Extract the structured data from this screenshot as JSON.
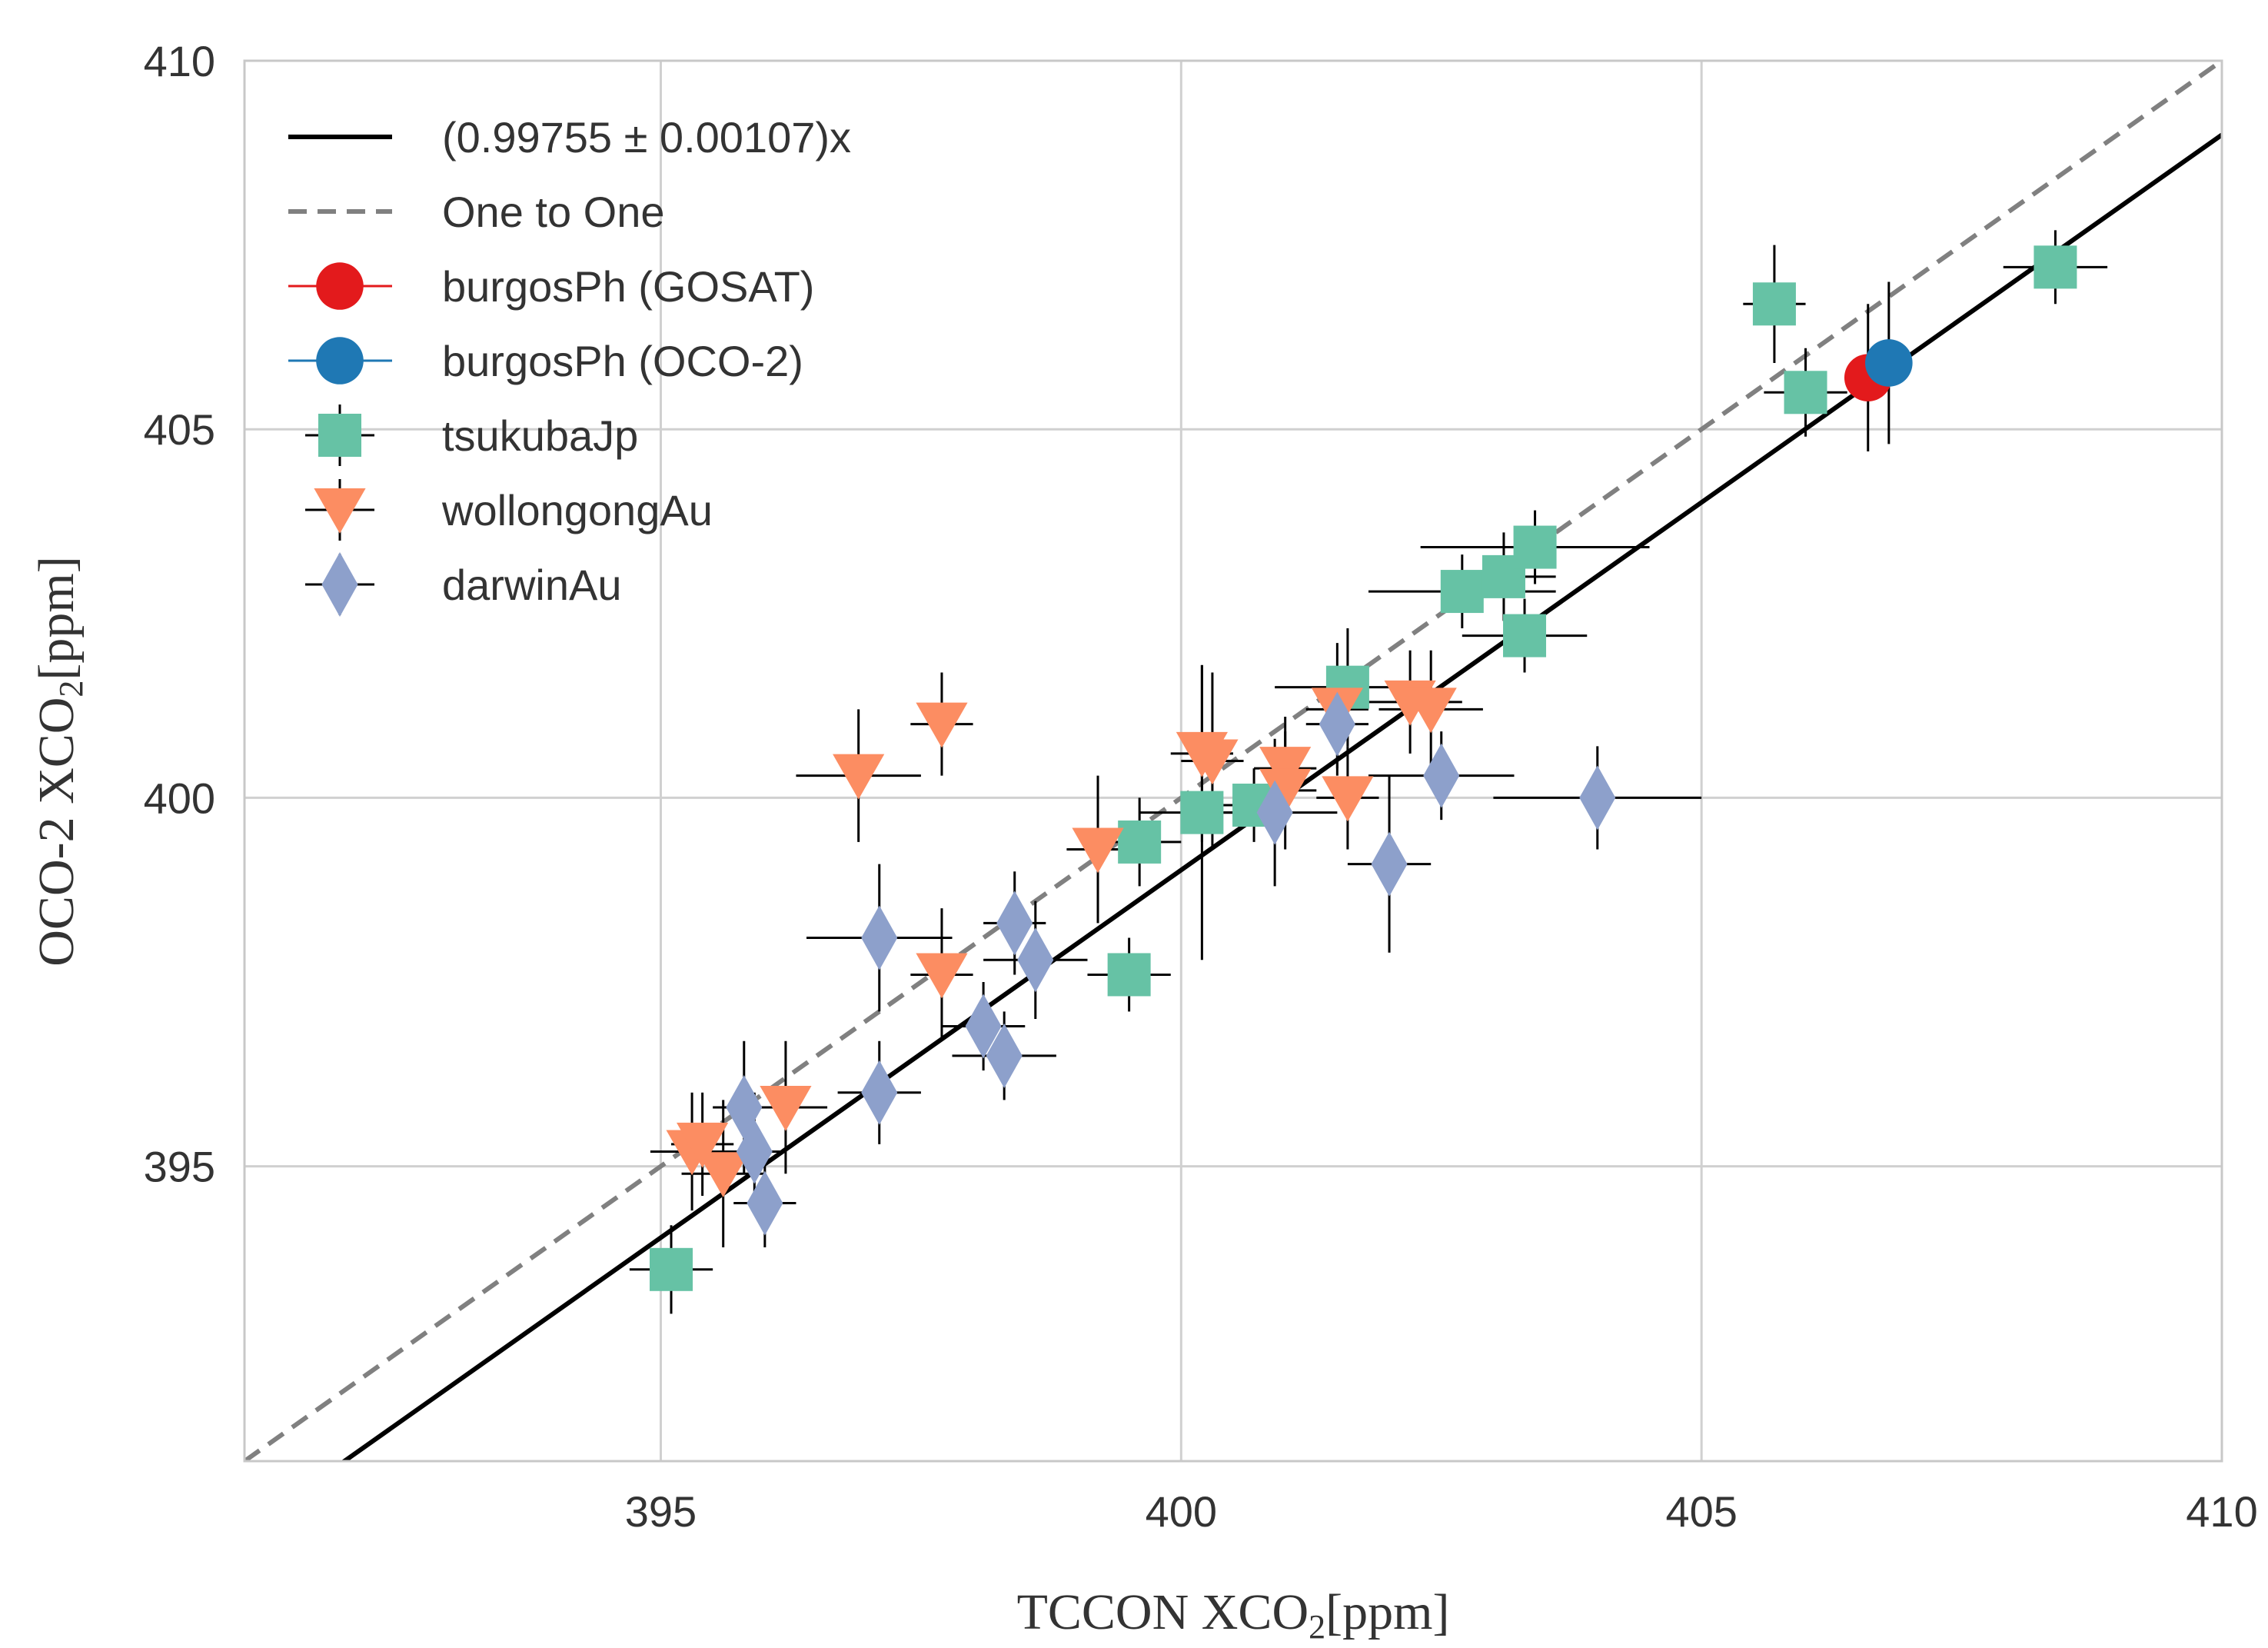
{
  "chart_data": {
    "type": "scatter",
    "title": "",
    "xlabel": "TCCON XCO",
    "xlabel_sub": "2",
    "xlabel_tail": "[ppm]",
    "ylabel": "OCO-2 XCO",
    "ylabel_sub": "2",
    "ylabel_tail": "[ppm]",
    "xlim": [
      391,
      410
    ],
    "ylim": [
      391,
      410
    ],
    "xticks": [
      395,
      400,
      405,
      410
    ],
    "yticks": [
      395,
      400,
      405,
      410
    ],
    "grid": true,
    "legend_position": "top-left",
    "lines": [
      {
        "name": "(0.99755 ± 0.00107)x",
        "slope": 0.99755,
        "style": "solid",
        "color": "#000000"
      },
      {
        "name": "One to One",
        "slope": 1.0,
        "style": "dashed",
        "color": "#808080"
      }
    ],
    "series": [
      {
        "name": "burgosPh (GOSAT)",
        "marker": "circle",
        "color": "#e31a1c",
        "points": [
          {
            "x": 406.6,
            "y": 405.7,
            "xerr": 0.2,
            "yerr": 1.0
          }
        ]
      },
      {
        "name": "burgosPh (OCO-2)",
        "marker": "circle",
        "color": "#1f78b4",
        "points": [
          {
            "x": 406.8,
            "y": 405.9,
            "xerr": 0.2,
            "yerr": 1.1
          }
        ]
      },
      {
        "name": "tsukubaJp",
        "marker": "square",
        "color": "#66c2a5",
        "points": [
          {
            "x": 395.1,
            "y": 393.6,
            "xerr": 0.4,
            "yerr": 0.6
          },
          {
            "x": 399.5,
            "y": 397.6,
            "xerr": 0.4,
            "yerr": 0.5
          },
          {
            "x": 399.6,
            "y": 399.4,
            "xerr": 0.4,
            "yerr": 0.6
          },
          {
            "x": 400.2,
            "y": 399.8,
            "xerr": 0.6,
            "yerr": 2.0
          },
          {
            "x": 400.7,
            "y": 399.9,
            "xerr": 0.3,
            "yerr": 0.5
          },
          {
            "x": 401.6,
            "y": 401.5,
            "xerr": 0.7,
            "yerr": 0.8
          },
          {
            "x": 402.7,
            "y": 402.8,
            "xerr": 0.9,
            "yerr": 0.5
          },
          {
            "x": 403.1,
            "y": 403.0,
            "xerr": 0.5,
            "yerr": 0.6
          },
          {
            "x": 403.3,
            "y": 402.2,
            "xerr": 0.6,
            "yerr": 0.5
          },
          {
            "x": 403.4,
            "y": 403.4,
            "xerr": 1.1,
            "yerr": 0.5
          },
          {
            "x": 405.7,
            "y": 406.7,
            "xerr": 0.3,
            "yerr": 0.8
          },
          {
            "x": 406.0,
            "y": 405.5,
            "xerr": 0.4,
            "yerr": 0.6
          },
          {
            "x": 408.4,
            "y": 407.2,
            "xerr": 0.5,
            "yerr": 0.5
          }
        ]
      },
      {
        "name": "wollongongAu",
        "marker": "triangle-down",
        "color": "#fc8d62",
        "points": [
          {
            "x": 395.3,
            "y": 395.2,
            "xerr": 0.4,
            "yerr": 0.8
          },
          {
            "x": 395.4,
            "y": 395.3,
            "xerr": 0.3,
            "yerr": 0.7
          },
          {
            "x": 395.6,
            "y": 394.9,
            "xerr": 0.4,
            "yerr": 1.0
          },
          {
            "x": 396.2,
            "y": 395.8,
            "xerr": 0.4,
            "yerr": 0.9
          },
          {
            "x": 396.9,
            "y": 400.3,
            "xerr": 0.6,
            "yerr": 0.9
          },
          {
            "x": 397.7,
            "y": 401.0,
            "xerr": 0.3,
            "yerr": 0.7
          },
          {
            "x": 397.7,
            "y": 397.6,
            "xerr": 0.3,
            "yerr": 0.9
          },
          {
            "x": 399.2,
            "y": 399.3,
            "xerr": 0.3,
            "yerr": 1.0
          },
          {
            "x": 400.2,
            "y": 400.6,
            "xerr": 0.3,
            "yerr": 1.2
          },
          {
            "x": 400.3,
            "y": 400.5,
            "xerr": 0.3,
            "yerr": 1.2
          },
          {
            "x": 401.0,
            "y": 400.4,
            "xerr": 0.3,
            "yerr": 0.7
          },
          {
            "x": 401.0,
            "y": 400.1,
            "xerr": 0.3,
            "yerr": 0.8
          },
          {
            "x": 401.5,
            "y": 401.2,
            "xerr": 0.3,
            "yerr": 0.9
          },
          {
            "x": 401.6,
            "y": 400.0,
            "xerr": 0.3,
            "yerr": 0.7
          },
          {
            "x": 402.2,
            "y": 401.3,
            "xerr": 0.5,
            "yerr": 0.7
          },
          {
            "x": 402.4,
            "y": 401.2,
            "xerr": 0.5,
            "yerr": 0.8
          }
        ]
      },
      {
        "name": "darwinAu",
        "marker": "diamond",
        "color": "#8da0cb",
        "points": [
          {
            "x": 395.8,
            "y": 395.8,
            "xerr": 0.3,
            "yerr": 0.9
          },
          {
            "x": 395.9,
            "y": 395.2,
            "xerr": 0.3,
            "yerr": 0.8
          },
          {
            "x": 396.0,
            "y": 394.5,
            "xerr": 0.3,
            "yerr": 0.6
          },
          {
            "x": 397.1,
            "y": 398.1,
            "xerr": 0.7,
            "yerr": 1.0
          },
          {
            "x": 397.1,
            "y": 396.0,
            "xerr": 0.4,
            "yerr": 0.7
          },
          {
            "x": 398.1,
            "y": 396.9,
            "xerr": 0.4,
            "yerr": 0.6
          },
          {
            "x": 398.3,
            "y": 396.5,
            "xerr": 0.5,
            "yerr": 0.6
          },
          {
            "x": 398.4,
            "y": 398.3,
            "xerr": 0.3,
            "yerr": 0.7
          },
          {
            "x": 398.6,
            "y": 397.8,
            "xerr": 0.5,
            "yerr": 0.8
          },
          {
            "x": 400.9,
            "y": 399.8,
            "xerr": 0.6,
            "yerr": 1.0
          },
          {
            "x": 401.5,
            "y": 401.0,
            "xerr": 0.3,
            "yerr": 0.6
          },
          {
            "x": 402.0,
            "y": 399.1,
            "xerr": 0.4,
            "yerr": 1.2
          },
          {
            "x": 402.5,
            "y": 400.3,
            "xerr": 0.7,
            "yerr": 0.6
          },
          {
            "x": 404.0,
            "y": 400.0,
            "xerr": 1.0,
            "yerr": 0.7
          }
        ]
      }
    ]
  }
}
